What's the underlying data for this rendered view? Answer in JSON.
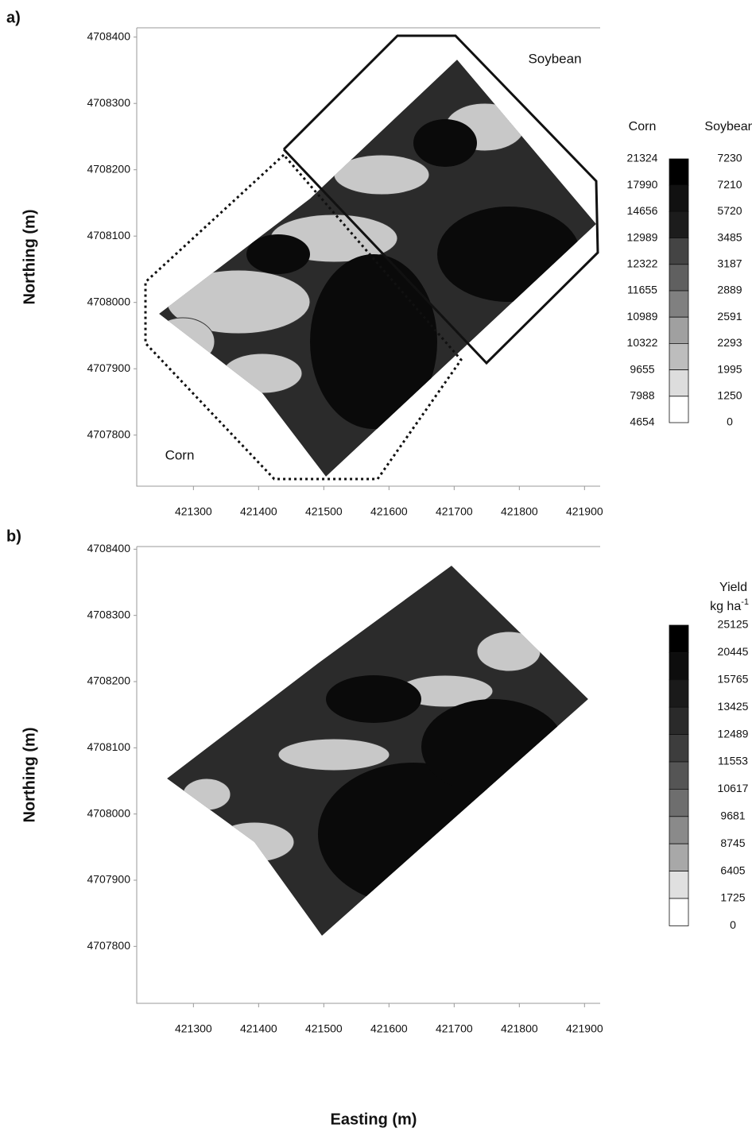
{
  "chart_data": [
    {
      "type": "contour",
      "title": "a)",
      "y_label": "Northing (m)",
      "xlim": [
        421213,
        421924
      ],
      "ylim": [
        4707723,
        4708414
      ],
      "xticks": [
        421300,
        421400,
        421500,
        421600,
        421700,
        421800,
        421900
      ],
      "yticks": [
        4707800,
        4707900,
        4708000,
        4708100,
        4708200,
        4708300,
        4708400
      ],
      "annotations": [
        "Soybean",
        "Corn"
      ],
      "legend": {
        "columns": [
          {
            "name": "Corn",
            "levels": [
              21324,
              17990,
              14656,
              12989,
              12322,
              11655,
              10989,
              10322,
              9655,
              7988,
              4654
            ]
          },
          {
            "name": "Soybean",
            "levels": [
              7230,
              7210,
              5720,
              3485,
              3187,
              2889,
              2591,
              2293,
              1995,
              1250,
              0
            ]
          }
        ],
        "colors": [
          "#000000",
          "#111111",
          "#1c1c1c",
          "#444444",
          "#606060",
          "#808080",
          "#a0a0a0",
          "#bdbdbd",
          "#dddddd",
          "#ffffff"
        ]
      }
    },
    {
      "type": "contour",
      "title": "b)",
      "y_label": "Northing (m)",
      "x_label": "Easting (m)",
      "xlim": [
        421213,
        421924
      ],
      "ylim": [
        4707714,
        4708404
      ],
      "xticks": [
        421300,
        421400,
        421500,
        421600,
        421700,
        421800,
        421900
      ],
      "yticks": [
        4707800,
        4707900,
        4708000,
        4708100,
        4708200,
        4708300,
        4708400
      ],
      "legend": {
        "title": "Yield",
        "unit": "kg ha",
        "unit_exp": "-1",
        "columns": [
          {
            "levels": [
              25125,
              20445,
              15765,
              13425,
              12489,
              11553,
              10617,
              9681,
              8745,
              6405,
              1725,
              0
            ]
          }
        ],
        "colors": [
          "#000000",
          "#0d0d0d",
          "#1a1a1a",
          "#2a2a2a",
          "#3d3d3d",
          "#555555",
          "#6e6e6e",
          "#8a8a8a",
          "#a8a8a8",
          "#e0e0e0",
          "#ffffff"
        ]
      }
    }
  ]
}
